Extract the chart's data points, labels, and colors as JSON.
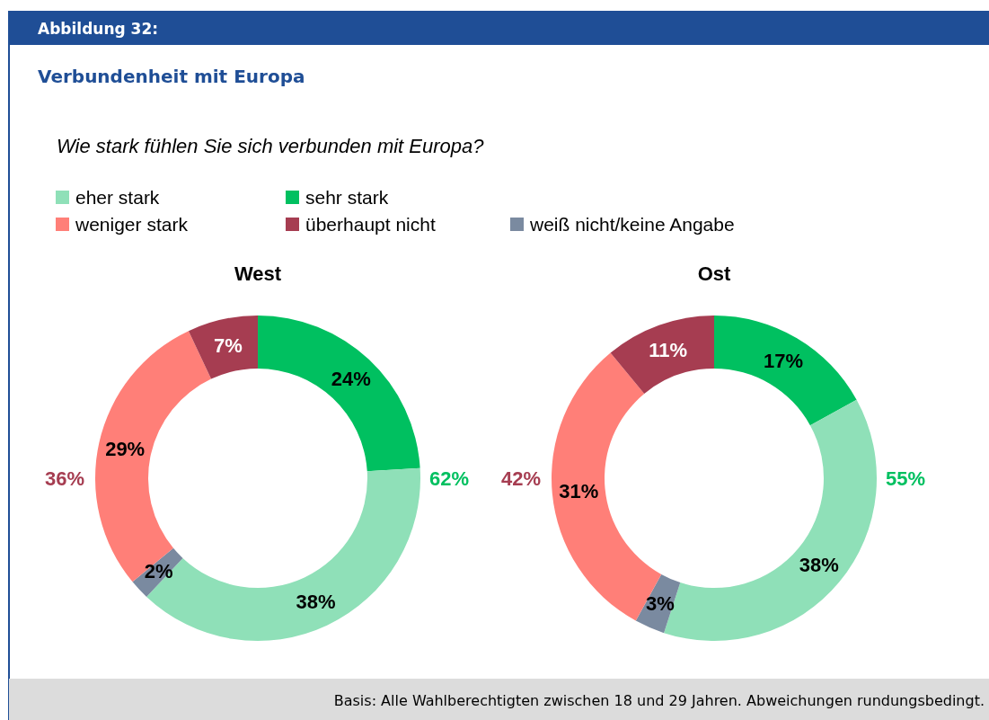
{
  "chart_data": [
    {
      "type": "other",
      "title": "Verbundenheit mit Europa",
      "subtitle": "Wie stark fühlen Sie sich verbunden mit Europa?",
      "annotations": [
        "Abbildung 32:",
        "Basis: Alle Wahlberechtigten zwischen 18 und 29 Jahren. Abweichungen rundungsbedingt."
      ]
    },
    {
      "type": "donut",
      "title": "West",
      "categories": [
        "sehr stark",
        "eher stark",
        "weiß nicht/keine Angabe",
        "weniger stark",
        "überhaupt nicht"
      ],
      "values": [
        24,
        38,
        2,
        29,
        7
      ],
      "value_labels": [
        "24%",
        "38%",
        "2%",
        "29%",
        "7%"
      ],
      "colors": [
        "#00c060",
        "#8fe0b8",
        "#7a8aa0",
        "#ff7f78",
        "#a63d51"
      ],
      "legend": "top",
      "annotations": [
        "36%",
        "62%"
      ]
    },
    {
      "type": "donut",
      "title": "Ost",
      "values": [
        17,
        38,
        3,
        31,
        11
      ],
      "value_labels": [
        "17%",
        "38%",
        "3%",
        "31%",
        "11%"
      ],
      "colors": [
        "#00c060",
        "#8fe0b8",
        "#7a8aa0",
        "#ff7f78",
        "#a63d51"
      ],
      "annotations": [
        "42%",
        "55%"
      ]
    }
  ]
}
